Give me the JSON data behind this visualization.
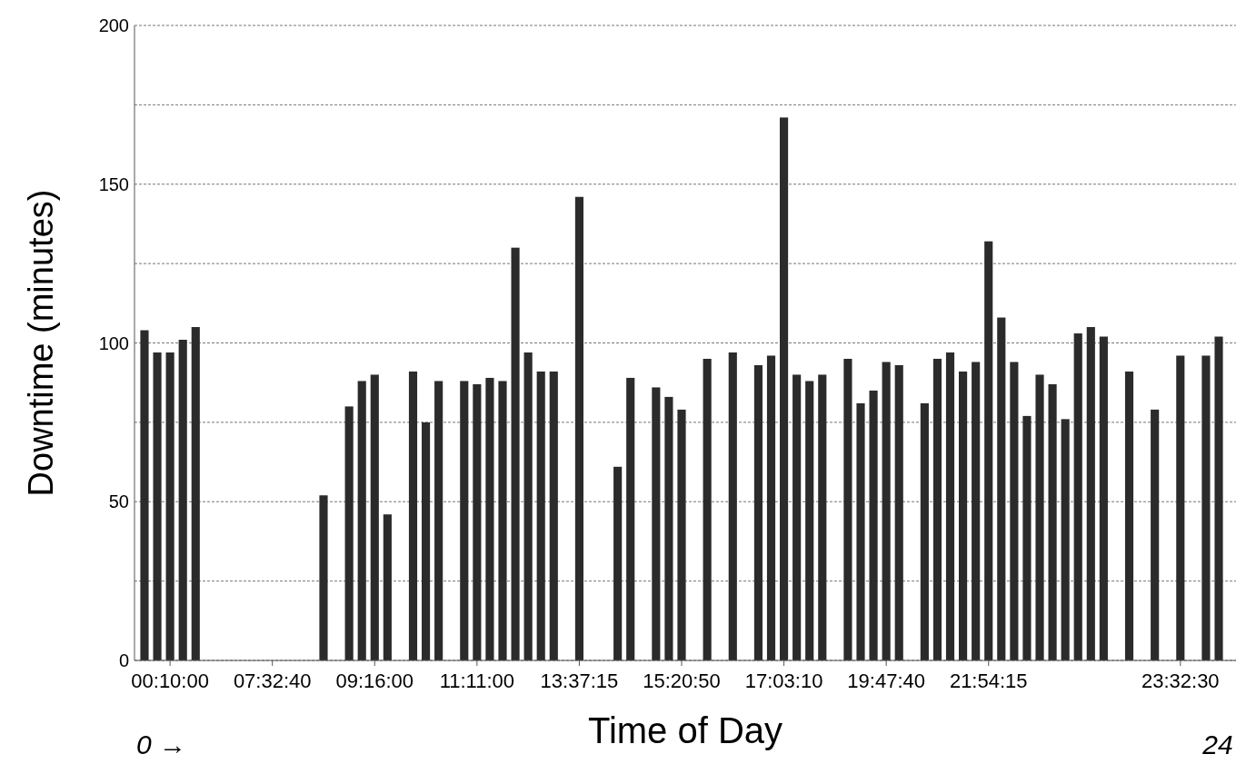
{
  "chart_data": {
    "type": "bar",
    "xlabel": "Time of Day",
    "ylabel": "Downtime (minutes)",
    "categories": [
      null,
      null,
      "00:10:00",
      null,
      null,
      null,
      null,
      null,
      null,
      null,
      "07:32:40",
      null,
      null,
      null,
      null,
      null,
      null,
      null,
      "09:16:00",
      null,
      null,
      null,
      null,
      null,
      null,
      null,
      "11:11:00",
      null,
      null,
      null,
      null,
      null,
      null,
      null,
      "13:37:15",
      null,
      null,
      null,
      null,
      null,
      null,
      null,
      "15:20:50",
      null,
      null,
      null,
      null,
      null,
      null,
      null,
      "17:03:10",
      null,
      null,
      null,
      null,
      null,
      null,
      null,
      "19:47:40",
      null,
      null,
      null,
      null,
      null,
      null,
      null,
      "21:54:15",
      null,
      null,
      null,
      null,
      null,
      null,
      null,
      null,
      null,
      null,
      null,
      null,
      null,
      null,
      "23:32:30",
      null,
      null,
      null
    ],
    "values": [
      104,
      97,
      97,
      101,
      105,
      null,
      null,
      null,
      null,
      null,
      null,
      null,
      null,
      null,
      52,
      null,
      80,
      88,
      90,
      46,
      null,
      91,
      75,
      88,
      null,
      88,
      87,
      89,
      88,
      130,
      97,
      91,
      91,
      null,
      146,
      null,
      null,
      61,
      89,
      null,
      86,
      83,
      79,
      null,
      95,
      null,
      97,
      null,
      93,
      96,
      171,
      90,
      88,
      90,
      null,
      95,
      81,
      85,
      94,
      93,
      null,
      81,
      95,
      97,
      91,
      94,
      132,
      108,
      94,
      77,
      90,
      87,
      76,
      103,
      105,
      102,
      null,
      91,
      null,
      79,
      null,
      96,
      null,
      96,
      102
    ],
    "color": "#2b2b2b",
    "ylim": [
      0,
      200
    ],
    "yticks": [
      0,
      {
        "value": 25,
        "label": null
      },
      50,
      {
        "value": 75,
        "label": null
      },
      100,
      {
        "value": 125,
        "label": null
      },
      150,
      {
        "value": 175,
        "label": null
      },
      200
    ],
    "grid": "y",
    "annotations": [
      "0 →",
      "24"
    ]
  }
}
